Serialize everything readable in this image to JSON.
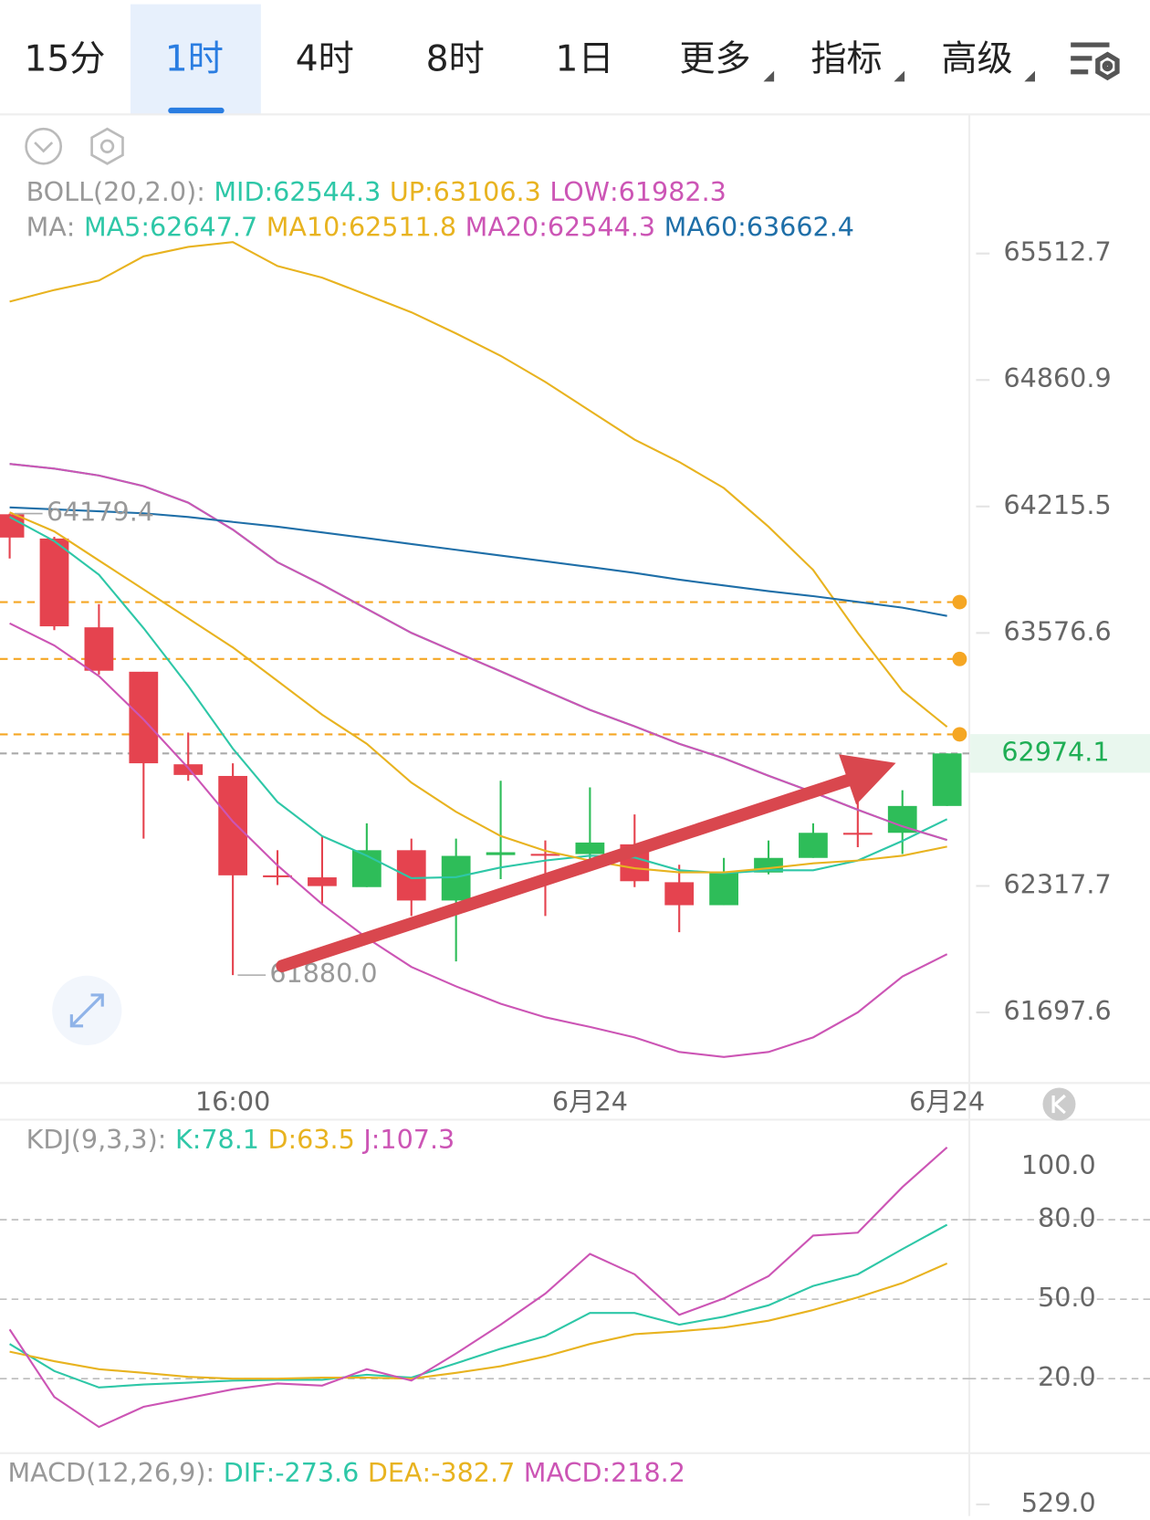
{
  "tabs": [
    "15分",
    "1时",
    "4时",
    "8时",
    "1日",
    "更多",
    "指标",
    "高级"
  ],
  "active_tab": 1,
  "chart_data": [
    {
      "type": "candlestick",
      "categories": [
        null,
        null,
        null,
        null,
        null,
        "16:00",
        null,
        null,
        null,
        null,
        null,
        null,
        null,
        "6月24",
        null,
        null,
        null,
        null,
        null,
        null,
        null,
        "6月24"
      ],
      "open": [
        64176,
        64053,
        63605,
        63382,
        62920,
        62862,
        62370,
        62360,
        62312,
        62494,
        62246,
        62470,
        62476,
        62475,
        62523,
        62336,
        62223,
        62384,
        62456,
        62580,
        62580,
        62713
      ],
      "high": [
        64179.4,
        64062,
        63722,
        63382,
        63078,
        62925,
        62494,
        62561,
        62627,
        62551,
        62551,
        62838,
        62542,
        62805,
        62671,
        62422,
        62456,
        62542,
        62627,
        62757,
        62791,
        62974.1
      ],
      "low": [
        63952,
        63591,
        63368,
        62551,
        62838,
        61880,
        62322,
        62232,
        62312,
        62170,
        61947,
        62351,
        62170,
        62446,
        62312,
        62090,
        62223,
        62375,
        62456,
        62509,
        62475,
        62713
      ],
      "close": [
        64058,
        63610,
        63387,
        62925,
        62867,
        62370,
        62368,
        62317,
        62494,
        62246,
        62466,
        62484,
        62475,
        62532,
        62341,
        62223,
        62389,
        62456,
        62580,
        62578,
        62713,
        62974.1
      ],
      "up_color": "#2ebd59",
      "down_color": "#e5434f",
      "log_scale": true,
      "ylim": [
        61364,
        66227
      ],
      "yticks": [
        61697.6,
        62317.7,
        63576.6,
        64215.5,
        64860.9,
        65512.7
      ],
      "last_price": 62974.1,
      "last_price_color": "#1fae55",
      "alert_lines": [
        63732,
        63446,
        63069
      ],
      "alert_color": "#f5a623",
      "annotations": [
        {
          "index": 0,
          "value": 64179.4
        },
        {
          "index": 5,
          "value": 61880,
          "label": "61880.0"
        }
      ],
      "label_separator": ":",
      "overlays": [
        {
          "title": "BOLL(20,2.0)",
          "series": [
            {
              "name": "MID",
              "color": "#2ec7a7",
              "values": [
                64432,
                64408,
                64373,
                64319,
                64235,
                64098,
                63933,
                63820,
                63698,
                63577,
                63480,
                63384,
                63287,
                63191,
                63109,
                63022,
                62950,
                62863,
                62781,
                62694,
                62612,
                62544.3
              ]
            },
            {
              "name": "UP",
              "color": "#e8b320",
              "values": [
                65264,
                65324,
                65373,
                65498,
                65547,
                65572,
                65448,
                65388,
                65299,
                65209,
                65100,
                64985,
                64851,
                64703,
                64556,
                64442,
                64309,
                64113,
                63894,
                63577,
                63287,
                63106.3
              ]
            },
            {
              "name": "LOW",
              "color": "#cc55b5",
              "values": [
                63625,
                63514,
                63360,
                63143,
                62902,
                62636,
                62419,
                62228,
                62062,
                61920,
                61825,
                61740,
                61674,
                61627,
                61576,
                61505,
                61481,
                61505,
                61576,
                61698,
                61873,
                61982.3
              ]
            }
          ]
        },
        {
          "title": "MA",
          "series": [
            {
              "name": "MA5",
              "color": "#2ec7a7",
              "values": [
                64162,
                64040,
                63870,
                63601,
                63311,
                62998,
                62733,
                62564,
                62467,
                62356,
                62361,
                62409,
                62443,
                62467,
                62458,
                62395,
                62380,
                62395,
                62395,
                62443,
                62540,
                62647.7
              ]
            },
            {
              "name": "MA10",
              "color": "#e8b320",
              "values": [
                64186,
                64089,
                63942,
                63796,
                63650,
                63504,
                63336,
                63167,
                63022,
                62829,
                62684,
                62564,
                62491,
                62443,
                62405,
                62385,
                62385,
                62405,
                62429,
                62443,
                62467,
                62511.8
              ]
            },
            {
              "name": "MA20",
              "color": "#cc55b5",
              "values": [
                64432,
                64408,
                64373,
                64319,
                64235,
                64098,
                63933,
                63820,
                63698,
                63577,
                63480,
                63384,
                63287,
                63191,
                63109,
                63022,
                62950,
                62863,
                62781,
                62694,
                62612,
                62544.3
              ]
            },
            {
              "name": "MA60",
              "color": "#1f6fa8",
              "values": [
                64211,
                64201,
                64191,
                64181,
                64162,
                64137,
                64113,
                64084,
                64055,
                64025,
                63996,
                63967,
                63938,
                63909,
                63879,
                63845,
                63816,
                63787,
                63762,
                63733,
                63704,
                63662.4
              ]
            }
          ]
        }
      ]
    },
    {
      "type": "line",
      "title": "KDJ(9,3,3)",
      "label_separator": ":",
      "series": [
        {
          "name": "K",
          "color": "#2ec7a7",
          "values": [
            33.1,
            22.9,
            16.7,
            17.8,
            18.5,
            19.3,
            19.6,
            19.6,
            21.5,
            20.4,
            25.8,
            31.3,
            36.1,
            44.8,
            44.8,
            40.4,
            43.4,
            47.7,
            55.0,
            59.4,
            68.9,
            78.1
          ]
        },
        {
          "name": "D",
          "color": "#e8b320",
          "values": [
            30.2,
            26.6,
            23.6,
            22.2,
            20.7,
            20.0,
            20.0,
            20.4,
            20.4,
            20.0,
            22.2,
            24.7,
            28.4,
            33.1,
            36.8,
            37.9,
            39.3,
            41.9,
            45.9,
            50.7,
            56.1,
            63.5
          ]
        },
        {
          "name": "J",
          "color": "#cc55b5",
          "values": [
            38.6,
            13.1,
            1.8,
            9.4,
            12.7,
            16.0,
            18.2,
            17.4,
            23.6,
            19.3,
            29.5,
            40.4,
            52.1,
            67.1,
            59.4,
            44.1,
            50.3,
            58.7,
            74.0,
            75.1,
            92.3,
            107.3
          ]
        }
      ],
      "ylim": [
        -7,
        117
      ],
      "yticks": [
        {
          "value": 100,
          "label": "100.0"
        },
        {
          "value": 80,
          "label": "80.0"
        },
        {
          "value": 50,
          "label": "50.0"
        },
        {
          "value": 20,
          "label": "20.0"
        }
      ],
      "dashed_levels": [
        80,
        50,
        20
      ]
    },
    {
      "type": "macd",
      "title": "MACD(12,26,9)",
      "label_separator": ":",
      "indicators": [
        {
          "name": "DIF",
          "value": -273.6,
          "color": "#2ec7a7"
        },
        {
          "name": "DEA",
          "value": -382.7,
          "color": "#e8b320"
        },
        {
          "name": "MACD",
          "value": 218.2,
          "color": "#cc55b5"
        }
      ],
      "yticks": [
        {
          "value": 529,
          "label": "529.0"
        }
      ]
    }
  ]
}
